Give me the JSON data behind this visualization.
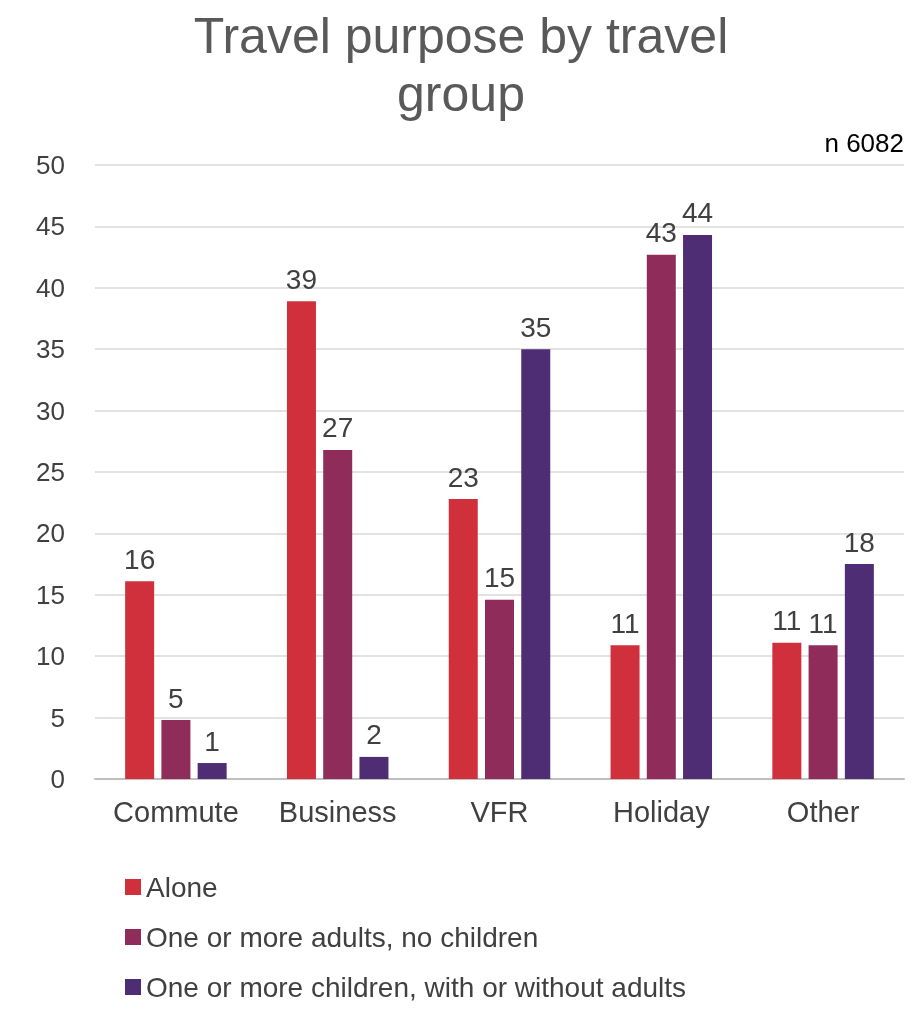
{
  "chart_data": {
    "type": "bar",
    "title": "Travel purpose by travel\ngroup",
    "annotations": [
      "n 6082"
    ],
    "categories": [
      "Commute",
      "Business",
      "VFR",
      "Holiday",
      "Other"
    ],
    "series": [
      {
        "name": "Alone",
        "color": "#d02f3c",
        "values": [
          16.1,
          38.9,
          22.8,
          10.9,
          11.1
        ],
        "value_labels": [
          "16",
          "39",
          "23",
          "11",
          "11"
        ]
      },
      {
        "name": "One or more adults, no children",
        "color": "#902c5a",
        "values": [
          4.8,
          26.8,
          14.6,
          42.7,
          10.9
        ],
        "value_labels": [
          "5",
          "27",
          "15",
          "43",
          "11"
        ]
      },
      {
        "name": "One or more children, with or without adults",
        "color": "#4f2d74",
        "values": [
          1.3,
          1.8,
          35.0,
          44.3,
          17.5
        ],
        "value_labels": [
          "1",
          "2",
          "35",
          "44",
          "18"
        ]
      }
    ],
    "ylim": [
      0,
      50
    ],
    "yticks": [
      0,
      5,
      10,
      15,
      20,
      25,
      30,
      35,
      40,
      45,
      50
    ],
    "grid": "y",
    "legend": "bottom"
  }
}
